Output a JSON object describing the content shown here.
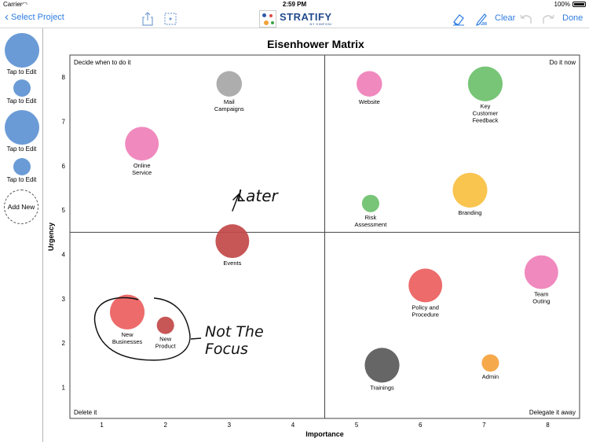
{
  "status_bar": {
    "carrier": "Carrier",
    "time": "2:59 PM",
    "battery": "100%"
  },
  "toolbar": {
    "back_label": "Select Project",
    "app_name": "STRATIFY",
    "app_sub": "BY SIMFONI",
    "clear_label": "Clear",
    "done_label": "Done"
  },
  "sidebar": {
    "items": [
      {
        "label": "Tap to Edit",
        "size": "large"
      },
      {
        "label": "Tap to Edit",
        "size": "small"
      },
      {
        "label": "Tap to Edit",
        "size": "large"
      },
      {
        "label": "Tap to Edit",
        "size": "small"
      }
    ],
    "add_new_label": "Add New"
  },
  "chart_data": {
    "type": "scatter",
    "title": "Eisenhower Matrix",
    "xlabel": "Importance",
    "ylabel": "Urgency",
    "xlim": [
      0.5,
      8.5
    ],
    "ylim": [
      0.3,
      8.5
    ],
    "x_divider": 4.5,
    "y_divider": 4.5,
    "xticks": [
      "1",
      "2",
      "3",
      "4",
      "5",
      "6",
      "7",
      "8"
    ],
    "yticks": [
      "1",
      "2",
      "3",
      "4",
      "5",
      "6",
      "7",
      "8"
    ],
    "quadrants": {
      "top_left": "Decide when to do it",
      "top_right": "Do it now",
      "bottom_left": "Delete it",
      "bottom_right": "Delegate it away"
    },
    "points": [
      {
        "name": "Mail\nCampaigns",
        "x": 3.0,
        "y": 7.85,
        "size": 2.5,
        "color": "#a6a6a6"
      },
      {
        "name": "Online\nService",
        "x": 1.63,
        "y": 6.5,
        "size": 3.3,
        "color": "#ef7fb8"
      },
      {
        "name": "Website",
        "x": 5.2,
        "y": 7.85,
        "size": 2.5,
        "color": "#ef7fb8"
      },
      {
        "name": "Key\nCustomer\nFeedback",
        "x": 7.02,
        "y": 7.85,
        "size": 3.4,
        "color": "#6cc06c"
      },
      {
        "name": "Branding",
        "x": 6.78,
        "y": 5.45,
        "size": 3.4,
        "color": "#f8c040"
      },
      {
        "name": "Risk\nAssessment",
        "x": 5.22,
        "y": 5.15,
        "size": 1.7,
        "color": "#6cc06c"
      },
      {
        "name": "Events",
        "x": 3.05,
        "y": 4.3,
        "size": 3.3,
        "color": "#c24848"
      },
      {
        "name": "Policy and\nProcedure",
        "x": 6.08,
        "y": 3.3,
        "size": 3.3,
        "color": "#ec5e5e"
      },
      {
        "name": "Team\nOuting",
        "x": 7.9,
        "y": 3.6,
        "size": 3.3,
        "color": "#ef7fb8"
      },
      {
        "name": "New\nBusinesses",
        "x": 1.4,
        "y": 2.7,
        "size": 3.4,
        "color": "#ec5e5e"
      },
      {
        "name": "New\nProduct",
        "x": 2.0,
        "y": 2.4,
        "size": 1.7,
        "color": "#c24848"
      },
      {
        "name": "Trainings",
        "x": 5.4,
        "y": 1.5,
        "size": 3.4,
        "color": "#595959"
      },
      {
        "name": "Admin",
        "x": 7.1,
        "y": 1.55,
        "size": 1.7,
        "color": "#f5a23c"
      }
    ],
    "annotations": [
      {
        "text": "Later"
      },
      {
        "text": "Not The"
      },
      {
        "text": "Focus"
      }
    ],
    "grid": false
  }
}
